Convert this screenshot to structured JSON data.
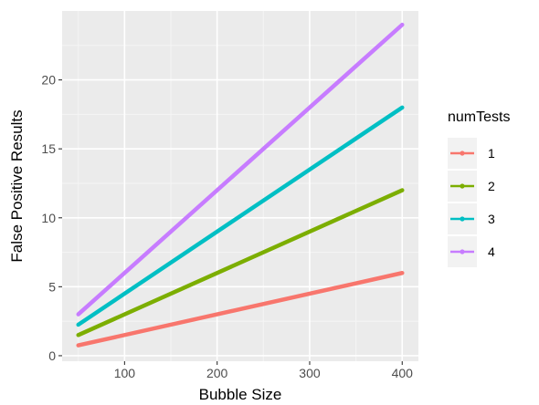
{
  "chart_data": {
    "type": "line",
    "title": "",
    "xlabel": "Bubble Size",
    "ylabel": "False Positive Results",
    "xlim": [
      32.5,
      417.5
    ],
    "ylim": [
      -0.4,
      25.0
    ],
    "x_ticks": [
      100,
      200,
      300,
      400
    ],
    "y_ticks": [
      0,
      5,
      10,
      15,
      20
    ],
    "grid": true,
    "legend_title": "numTests",
    "legend_position": "right",
    "series": [
      {
        "name": "1",
        "color": "#F8766D",
        "x": [
          50,
          400
        ],
        "y": [
          0.75,
          6.0
        ]
      },
      {
        "name": "2",
        "color": "#7CAE00",
        "x": [
          50,
          400
        ],
        "y": [
          1.5,
          12.0
        ]
      },
      {
        "name": "3",
        "color": "#00BFC4",
        "x": [
          50,
          400
        ],
        "y": [
          2.25,
          18.0
        ]
      },
      {
        "name": "4",
        "color": "#C77CFF",
        "x": [
          50,
          400
        ],
        "y": [
          3.0,
          24.0
        ]
      }
    ]
  }
}
